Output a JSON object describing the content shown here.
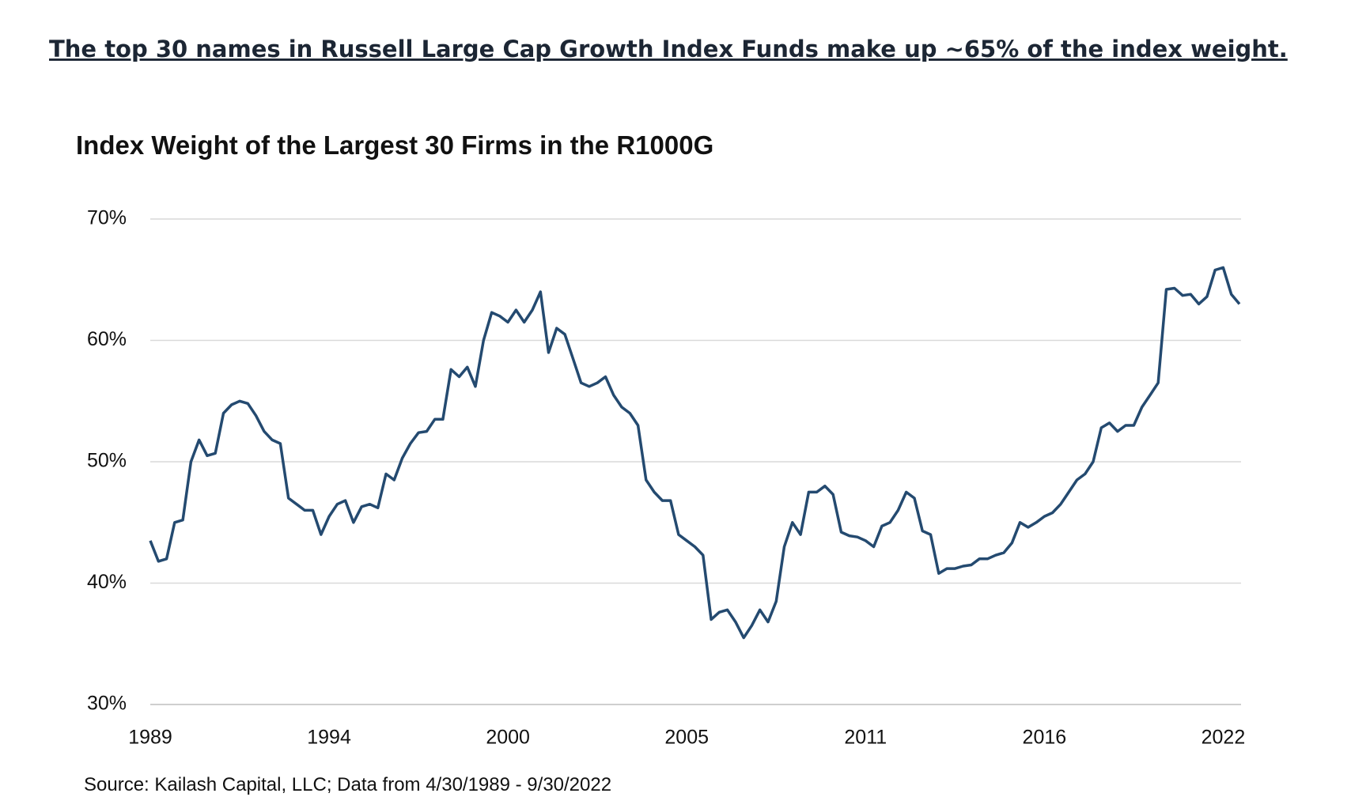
{
  "heading": "The top 30 names in Russell Large Cap Growth Index Funds make up ~65% of the index weight.",
  "chart_data": {
    "type": "line",
    "title": "Index Weight of the Largest 30 Firms in the R1000G",
    "source": "Source: Kailash Capital, LLC; Data from 4/30/1989 - 9/30/2022",
    "categories": [
      "1989",
      null,
      null,
      null,
      null,
      null,
      null,
      null,
      null,
      null,
      null,
      null,
      null,
      null,
      null,
      null,
      null,
      null,
      null,
      null,
      null,
      null,
      "1994",
      null,
      null,
      null,
      null,
      null,
      null,
      null,
      null,
      null,
      null,
      null,
      null,
      null,
      null,
      null,
      null,
      null,
      null,
      null,
      null,
      null,
      "2000",
      null,
      null,
      null,
      null,
      null,
      null,
      null,
      null,
      null,
      null,
      null,
      null,
      null,
      null,
      null,
      null,
      null,
      null,
      null,
      null,
      null,
      "2005",
      null,
      null,
      null,
      null,
      null,
      null,
      null,
      null,
      null,
      null,
      null,
      null,
      null,
      null,
      null,
      null,
      null,
      null,
      null,
      null,
      null,
      "2011",
      null,
      null,
      null,
      null,
      null,
      null,
      null,
      null,
      null,
      null,
      null,
      null,
      null,
      null,
      null,
      null,
      null,
      null,
      null,
      null,
      null,
      "2016",
      null,
      null,
      null,
      null,
      null,
      null,
      null,
      null,
      null,
      null,
      null,
      null,
      null,
      null,
      null,
      null,
      null,
      null,
      null,
      null,
      null,
      "2022",
      null,
      null
    ],
    "series": [
      {
        "name": "Index Weight",
        "color": "#244a70",
        "values": [
          43.5,
          41.8,
          42.0,
          45.0,
          45.2,
          50.0,
          51.8,
          50.5,
          50.7,
          54.0,
          54.7,
          55.0,
          54.8,
          53.8,
          52.5,
          51.8,
          51.5,
          47.0,
          46.5,
          46.0,
          46.0,
          44.0,
          45.5,
          46.5,
          46.8,
          45.0,
          46.3,
          46.5,
          46.2,
          49.0,
          48.5,
          50.3,
          51.5,
          52.4,
          52.5,
          53.5,
          53.5,
          57.6,
          57.0,
          57.8,
          56.2,
          60.0,
          62.3,
          62.0,
          61.5,
          62.5,
          61.5,
          62.5,
          64.0,
          59.0,
          61.0,
          60.5,
          58.5,
          56.5,
          56.2,
          56.5,
          57.0,
          55.5,
          54.5,
          54.0,
          53.0,
          48.5,
          47.5,
          46.8,
          46.8,
          44.0,
          43.5,
          43.0,
          42.3,
          37.0,
          37.6,
          37.8,
          36.8,
          35.5,
          36.5,
          37.8,
          36.8,
          38.5,
          43.0,
          45.0,
          44.0,
          47.5,
          47.5,
          48.0,
          47.3,
          44.2,
          43.9,
          43.8,
          43.5,
          43.0,
          44.7,
          45.0,
          46.0,
          47.5,
          47.0,
          44.3,
          44.0,
          40.8,
          41.2,
          41.2,
          41.4,
          41.5,
          42.0,
          42.0,
          42.3,
          42.5,
          43.3,
          45.0,
          44.6,
          45.0,
          45.5,
          45.8,
          46.5,
          47.5,
          48.5,
          49.0,
          50.0,
          52.8,
          53.2,
          52.5,
          53.0,
          53.0,
          54.5,
          55.5,
          56.5,
          64.2,
          64.3,
          63.7,
          63.8,
          63.0,
          63.6,
          65.8,
          66.0,
          63.8,
          63.0
        ]
      }
    ],
    "ylim": [
      30,
      70
    ],
    "yticks": [
      {
        "value": 30,
        "label": "30%"
      },
      {
        "value": 40,
        "label": "40%"
      },
      {
        "value": 50,
        "label": "50%"
      },
      {
        "value": 60,
        "label": "60%"
      },
      {
        "value": 70,
        "label": "70%"
      }
    ],
    "grid": true
  }
}
